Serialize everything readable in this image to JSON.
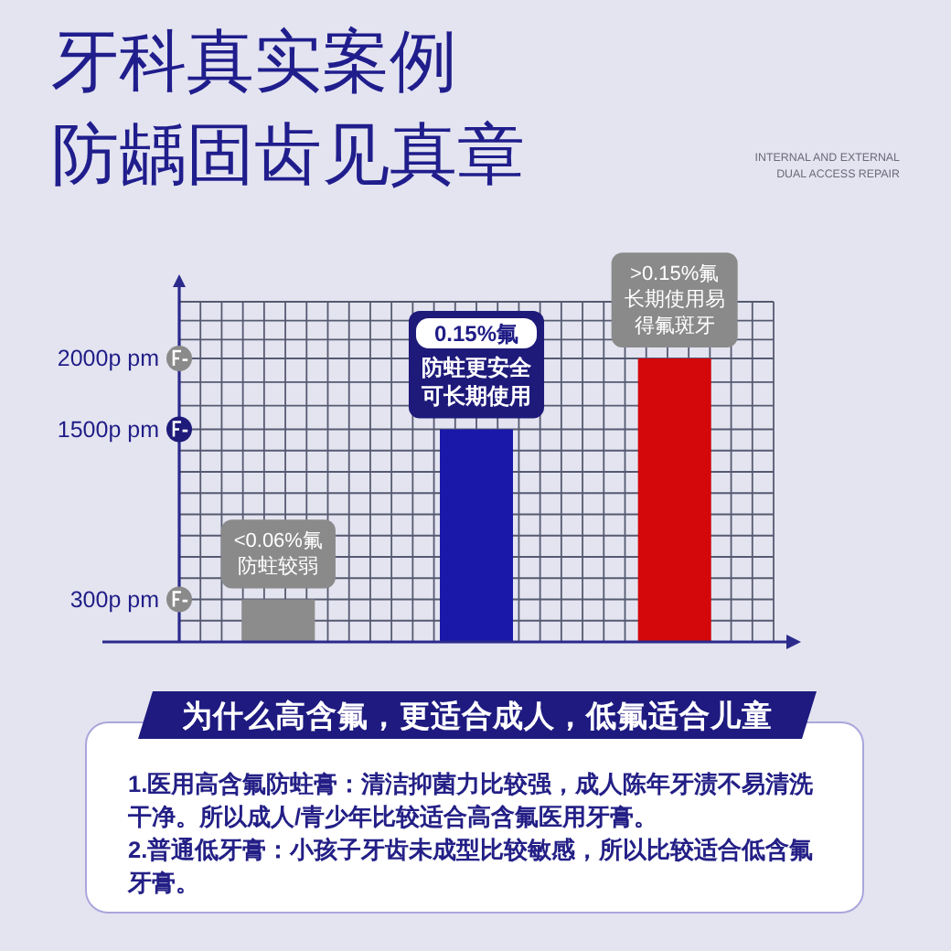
{
  "chart_data": {
    "type": "bar",
    "title": "牙科真实案例",
    "subtitle": "防龋固齿见真章",
    "categories": [
      null,
      null,
      null
    ],
    "values": [
      300,
      1500,
      2000
    ],
    "colors": [
      "#8c8c8c",
      "#1a18a8",
      "#d4070b"
    ],
    "ylim": [
      0,
      2400
    ],
    "yticks": [
      {
        "value": 300,
        "label": "300p pm"
      },
      {
        "value": 1500,
        "label": "1500p pm"
      },
      {
        "value": 2000,
        "label": "2000p pm"
      }
    ],
    "grid": true,
    "tick_labels": "y",
    "annotations": [
      {
        "text": "<0.06%氟防蛀较弱",
        "y": 300
      },
      "0.15%氟",
      {
        "text": "防蛀更安全可长期使用",
        "y": 1500
      },
      {
        "text": ">0.15%氟长期使用易得氟斑牙",
        "y": 2000
      },
      "INTERNAL AND EXTERNAL DUAL ACCESS REPAIR",
      "为什么高含氟，更适合成人，低氟适合儿童",
      "1.医用高含氟防蛀膏：清洁抑菌力比较强，成人陈年牙渍不易清洗干净。所以成人/青少年比较适合高含氟医用牙膏。",
      "2.普通低牙膏：小孩子牙齿未成型比较敏感，所以比较适合低含氟牙膏。"
    ]
  }
}
